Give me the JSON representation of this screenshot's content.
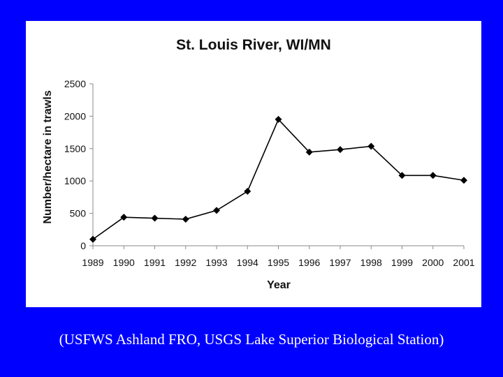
{
  "chart_data": {
    "type": "line",
    "title": "St. Louis River, WI/MN",
    "xlabel": "Year",
    "ylabel": "Number/hectare in trawls",
    "categories": [
      "1989",
      "1990",
      "1991",
      "1992",
      "1993",
      "1994",
      "1995",
      "1996",
      "1997",
      "1998",
      "1999",
      "2000",
      "2001"
    ],
    "series": [
      {
        "values": [
          100,
          440,
          425,
          410,
          545,
          840,
          1950,
          1445,
          1485,
          1535,
          1085,
          1085,
          1010
        ]
      }
    ],
    "ylim": [
      0,
      2500
    ],
    "yticks": [
      0,
      500,
      1000,
      1500,
      2000,
      2500
    ],
    "grid": false,
    "legend": "none",
    "marker": "diamond",
    "line_color": "#000000"
  },
  "caption": "(USFWS Ashland FRO, USGS Lake Superior Biological Station)",
  "colors": {
    "background": "#0000ff",
    "panel": "#ffffff",
    "caption_text": "#ffffff"
  }
}
